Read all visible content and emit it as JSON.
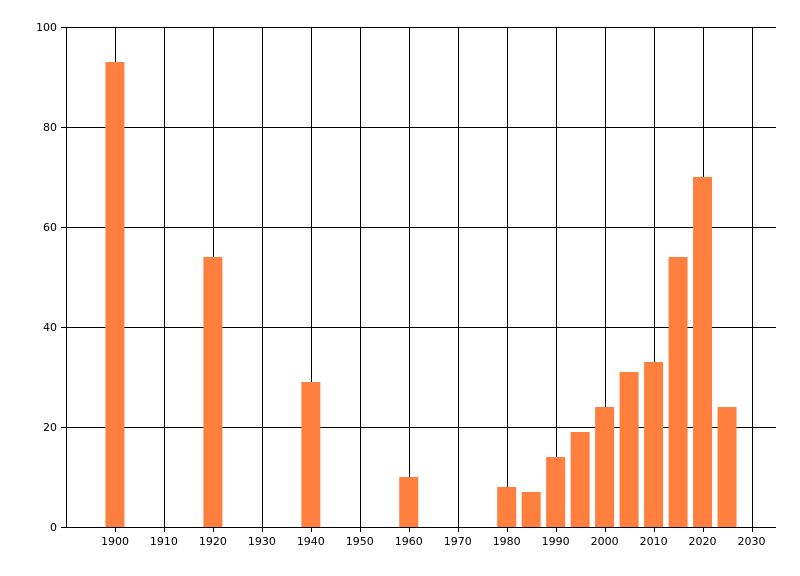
{
  "chart_data": {
    "type": "bar",
    "title": "",
    "xlabel": "",
    "ylabel": "",
    "xlim": [
      1890,
      2035
    ],
    "ylim": [
      0,
      100
    ],
    "x_ticks": [
      1900,
      1910,
      1920,
      1930,
      1940,
      1950,
      1960,
      1970,
      1980,
      1990,
      2000,
      2010,
      2020,
      2030
    ],
    "y_ticks": [
      0,
      20,
      40,
      60,
      80,
      100
    ],
    "grid": true,
    "legend": "none",
    "bar_color": "#ff7f3f",
    "points": [
      {
        "x": 1900,
        "y": 93
      },
      {
        "x": 1920,
        "y": 54
      },
      {
        "x": 1940,
        "y": 29
      },
      {
        "x": 1960,
        "y": 10
      },
      {
        "x": 1980,
        "y": 8
      },
      {
        "x": 1985,
        "y": 7
      },
      {
        "x": 1990,
        "y": 14
      },
      {
        "x": 1995,
        "y": 19
      },
      {
        "x": 2000,
        "y": 24
      },
      {
        "x": 2005,
        "y": 31
      },
      {
        "x": 2010,
        "y": 33
      },
      {
        "x": 2015,
        "y": 54
      },
      {
        "x": 2020,
        "y": 70
      },
      {
        "x": 2025,
        "y": 24
      }
    ]
  }
}
